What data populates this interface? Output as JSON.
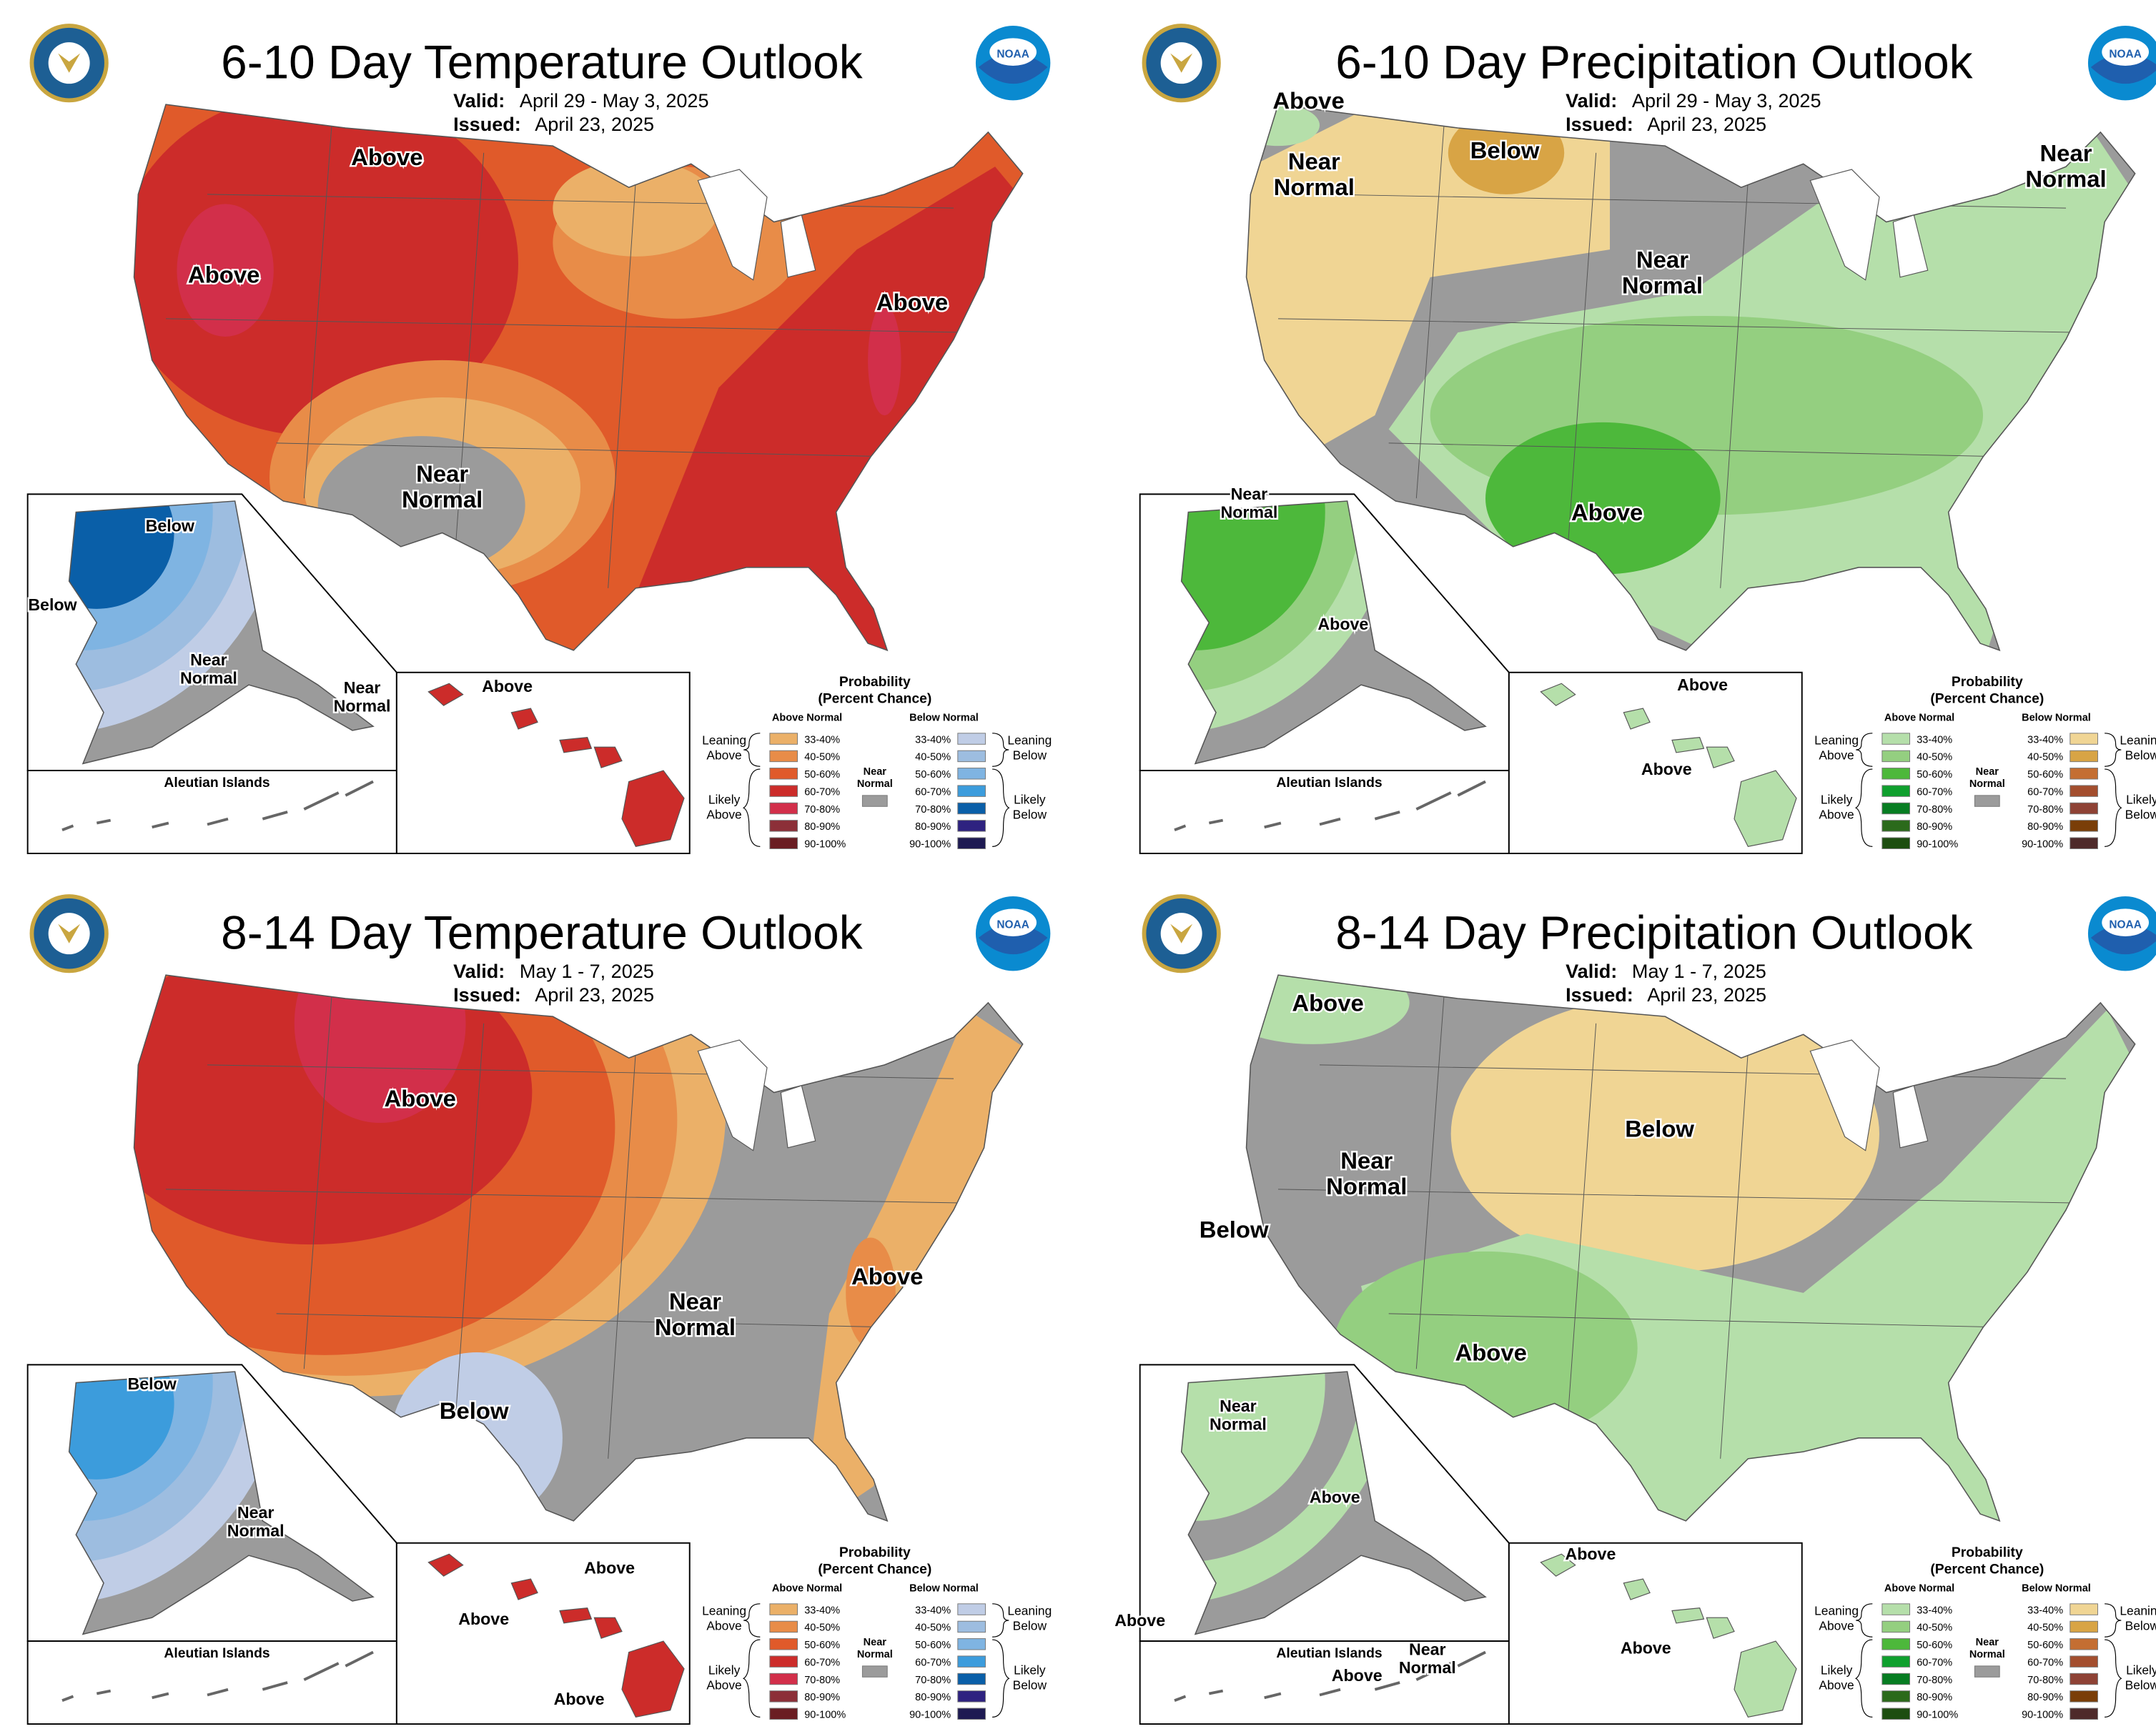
{
  "colors": {
    "near_normal": "#9b9b9b",
    "temp_above": [
      "#ebb068",
      "#e88c48",
      "#e05a2a",
      "#cc2c2a",
      "#d22f4a",
      "#8c2f38",
      "#6a1d22"
    ],
    "temp_below": [
      "#c0cde6",
      "#9dbde0",
      "#7fb4e2",
      "#3c9cdc",
      "#0a5fa8",
      "#2e2280",
      "#1e1a52"
    ],
    "precip_above": [
      "#b5dfaa",
      "#94cf80",
      "#4db83b",
      "#0fa02e",
      "#077d22",
      "#2b6a1b",
      "#1d4d10"
    ],
    "precip_below": [
      "#f0d594",
      "#d8a445",
      "#c46e32",
      "#a34e2e",
      "#8e4235",
      "#7a3e08",
      "#4e2a2a"
    ]
  },
  "legend": {
    "title_line1": "Probability",
    "title_line2": "(Percent Chance)",
    "above_header": "Above Normal",
    "below_header": "Below Normal",
    "ranges": [
      "33-40%",
      "40-50%",
      "50-60%",
      "60-70%",
      "70-80%",
      "80-90%",
      "90-100%"
    ],
    "near_normal": [
      "Near",
      "Normal"
    ],
    "leaning_above": [
      "Leaning",
      "Above"
    ],
    "likely_above": [
      "Likely",
      "Above"
    ],
    "leaning_below": [
      "Leaning",
      "Below"
    ],
    "likely_below": [
      "Likely",
      "Below"
    ]
  },
  "panels": [
    {
      "id": "temp-6-10",
      "kind": "temperature",
      "title": "6-10 Day Temperature Outlook",
      "valid_label": "Valid:",
      "valid": "April 29 - May 3, 2025",
      "issued_label": "Issued:",
      "issued": "April 23, 2025",
      "inset_label": "Aleutian Islands",
      "labels": [
        [
          "Above"
        ],
        [
          "Above"
        ],
        [
          "Above"
        ],
        [
          "Near",
          "Normal"
        ],
        [
          "Below"
        ],
        [
          "Below"
        ],
        [
          "Near",
          "Normal"
        ],
        [
          "Near",
          "Normal"
        ],
        [
          "Above"
        ]
      ]
    },
    {
      "id": "precip-6-10",
      "kind": "precipitation",
      "title": "6-10 Day Precipitation Outlook",
      "valid_label": "Valid:",
      "valid": "April 29 - May 3, 2025",
      "issued_label": "Issued:",
      "issued": "April 23, 2025",
      "inset_label": "Aleutian Islands",
      "labels": [
        [
          "Above"
        ],
        [
          "Near",
          "Normal"
        ],
        [
          "Below"
        ],
        [
          "Near",
          "Normal"
        ],
        [
          "Near",
          "Normal"
        ],
        [
          "Above"
        ],
        [
          "Near",
          "Normal"
        ],
        [
          "Above"
        ],
        [
          "Above"
        ],
        [
          "Above"
        ]
      ]
    },
    {
      "id": "temp-8-14",
      "kind": "temperature",
      "title": "8-14 Day Temperature Outlook",
      "valid_label": "Valid:",
      "valid": "May 1 - 7, 2025",
      "issued_label": "Issued:",
      "issued": "April 23, 2025",
      "inset_label": "Aleutian Islands",
      "labels": [
        [
          "Above"
        ],
        [
          "Above"
        ],
        [
          "Near",
          "Normal"
        ],
        [
          "Below"
        ],
        [
          "Below"
        ],
        [
          "Near",
          "Normal"
        ],
        [
          "Above"
        ],
        [
          "Above"
        ],
        [
          "Above"
        ]
      ]
    },
    {
      "id": "precip-8-14",
      "kind": "precipitation",
      "title": "8-14 Day Precipitation Outlook",
      "valid_label": "Valid:",
      "valid": "May 1 - 7, 2025",
      "issued_label": "Issued:",
      "issued": "April 23, 2025",
      "inset_label": "Aleutian Islands",
      "labels": [
        [
          "Above"
        ],
        [
          "Below"
        ],
        [
          "Near",
          "Normal"
        ],
        [
          "Below"
        ],
        [
          "Above"
        ],
        [
          "Near",
          "Normal"
        ],
        [
          "Above"
        ],
        [
          "Above"
        ],
        [
          "Above"
        ],
        [
          "Above"
        ],
        [
          "Near",
          "Normal"
        ],
        [
          "Above"
        ]
      ]
    }
  ]
}
